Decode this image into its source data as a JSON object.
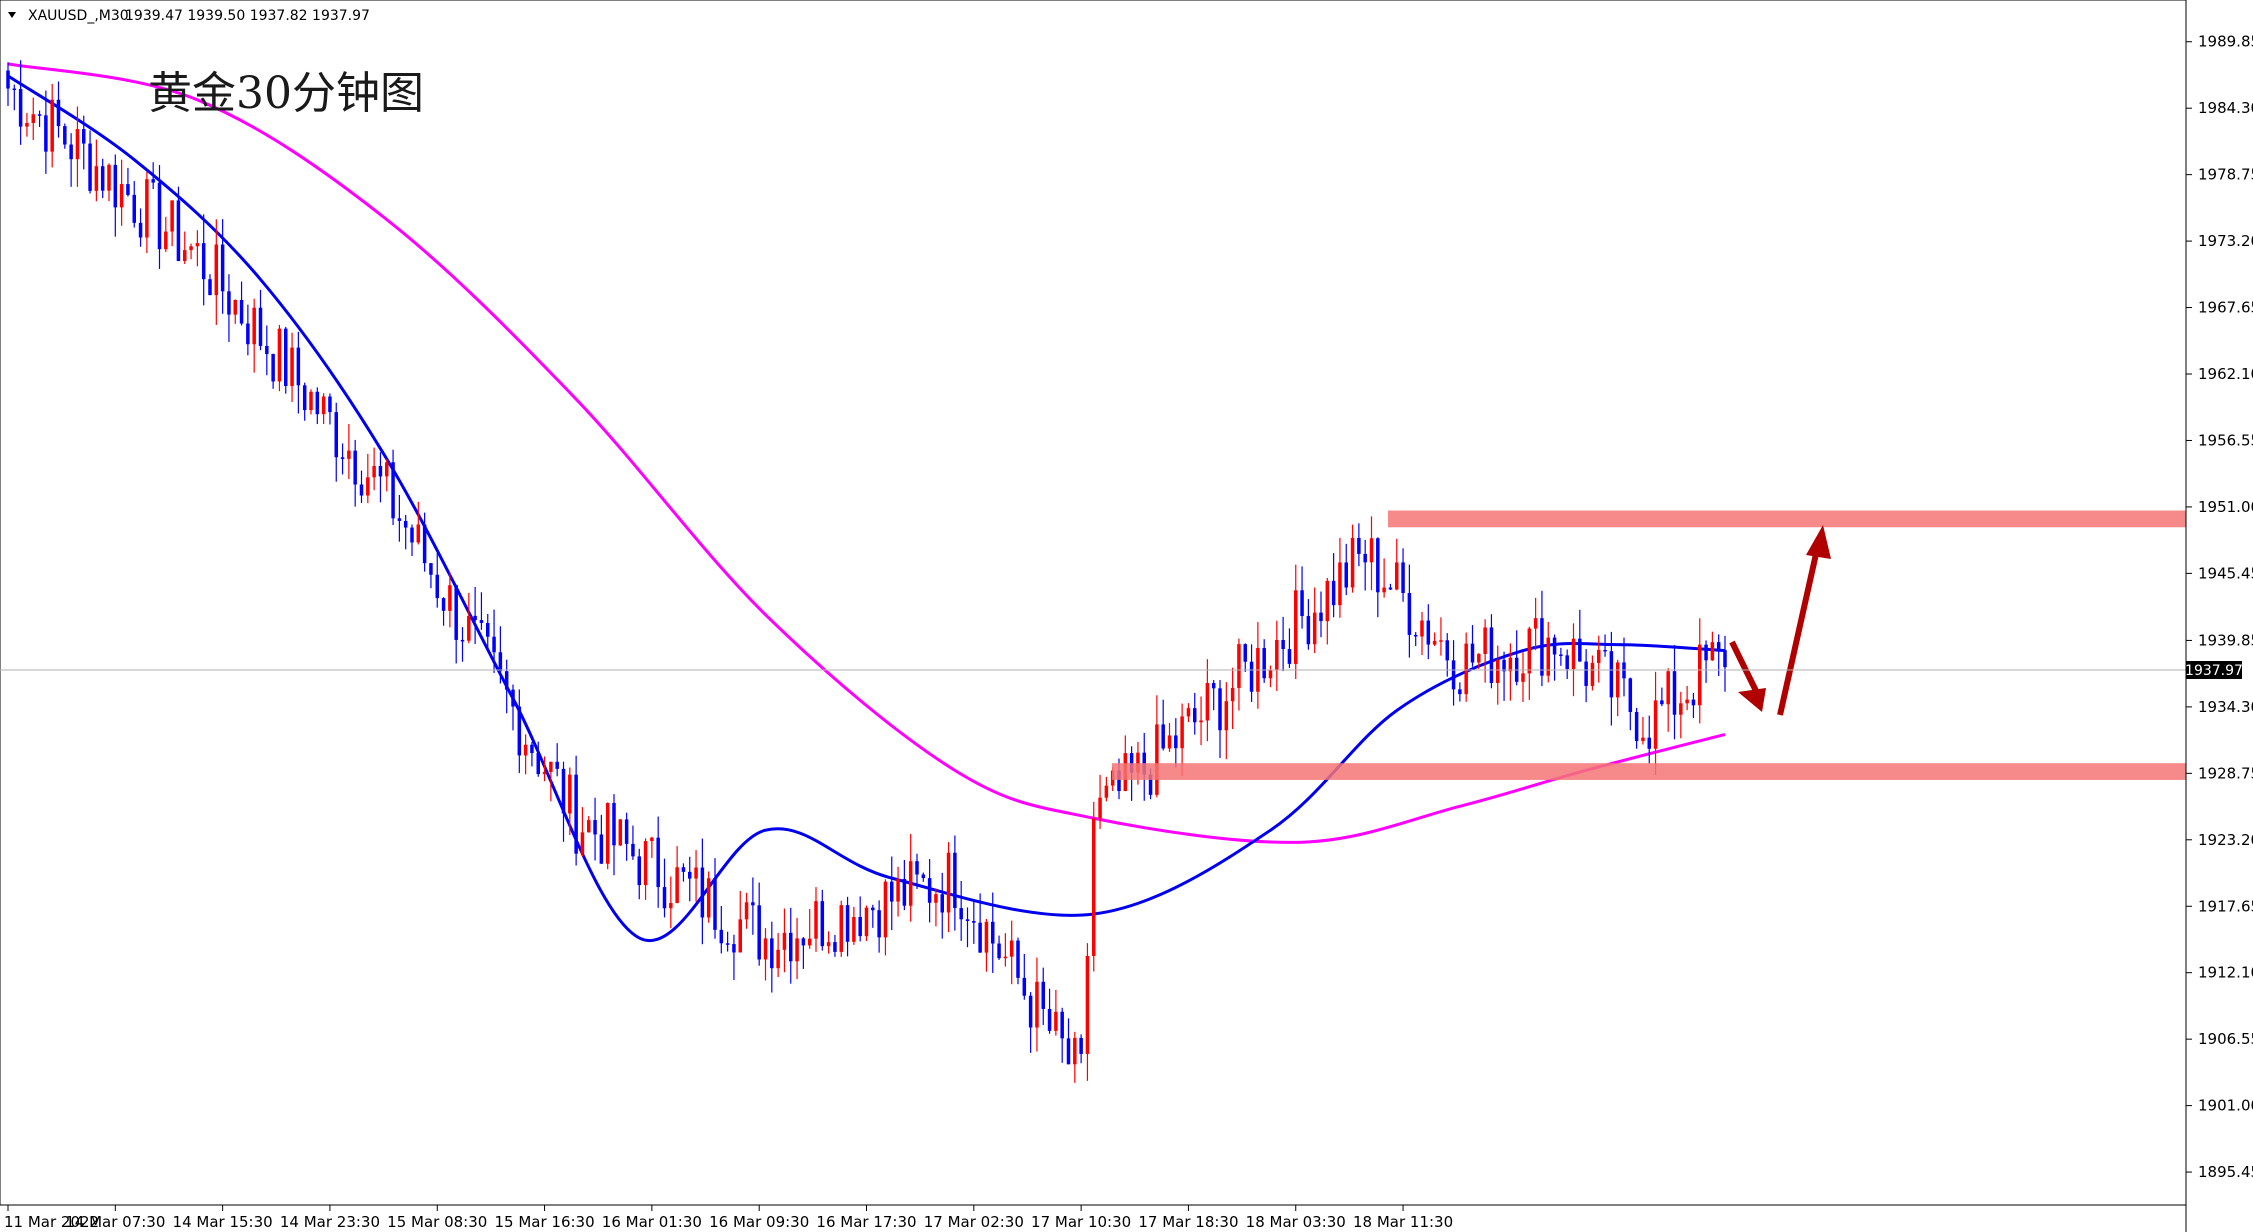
{
  "header": {
    "symbol": "XAUUSD_,M30",
    "ohlc": "1939.47 1939.50 1937.82 1937.97"
  },
  "chart_title": "黄金30分钟图",
  "colors": {
    "up": "#ff0000",
    "down": "#0000ff",
    "ma_fast": "#0000ee",
    "ma_slow": "#ff00ff",
    "zone": "#f47474",
    "arrow": "#b00000"
  },
  "current_price": "1937.97",
  "chart_data": {
    "type": "candlestick",
    "title": "黄金30分钟图",
    "ylim": [
      1892.7,
      1992.5
    ],
    "y_ticks": [
      "1989.85",
      "1984.30",
      "1978.75",
      "1973.20",
      "1967.65",
      "1962.10",
      "1956.55",
      "1951.00",
      "1945.45",
      "1939.85",
      "1934.30",
      "1928.75",
      "1923.20",
      "1917.65",
      "1912.10",
      "1906.55",
      "1901.00",
      "1895.45"
    ],
    "x_ticks": [
      "11 Mar 2022",
      "14 Mar 07:30",
      "14 Mar 15:30",
      "14 Mar 23:30",
      "15 Mar 08:30",
      "15 Mar 16:30",
      "16 Mar 01:30",
      "16 Mar 09:30",
      "16 Mar 17:30",
      "17 Mar 02:30",
      "17 Mar 10:30",
      "17 Mar 18:30",
      "18 Mar 03:30",
      "18 Mar 11:30"
    ],
    "key_points": [
      {
        "bar": 0,
        "close": 1986.0
      },
      {
        "bar": 30,
        "close": 1972.0
      },
      {
        "bar": 60,
        "close": 1952.0
      },
      {
        "bar": 90,
        "close": 1925.0
      },
      {
        "bar": 120,
        "close": 1915.0
      },
      {
        "bar": 150,
        "close": 1920.0
      },
      {
        "bar": 170,
        "close": 1903.0
      },
      {
        "bar": 172,
        "close": 1925.0
      },
      {
        "bar": 190,
        "close": 1934.0
      },
      {
        "bar": 215,
        "close": 1947.0
      },
      {
        "bar": 230,
        "close": 1938.0
      },
      {
        "bar": 245,
        "close": 1940.0
      },
      {
        "bar": 260,
        "close": 1933.0
      },
      {
        "bar": 270,
        "close": 1937.97
      }
    ],
    "ma_fast": [
      [
        0,
        1987
      ],
      [
        20,
        1980
      ],
      [
        40,
        1970
      ],
      [
        60,
        1955
      ],
      [
        80,
        1935
      ],
      [
        100,
        1915
      ],
      [
        120,
        1924
      ],
      [
        140,
        1920
      ],
      [
        172,
        1917
      ],
      [
        200,
        1924
      ],
      [
        220,
        1934
      ],
      [
        240,
        1939
      ],
      [
        255,
        1939.5
      ],
      [
        272,
        1939
      ]
    ],
    "ma_slow": [
      [
        0,
        1988
      ],
      [
        30,
        1985
      ],
      [
        60,
        1975
      ],
      [
        90,
        1960
      ],
      [
        120,
        1942
      ],
      [
        150,
        1929
      ],
      [
        172,
        1925
      ],
      [
        205,
        1923
      ],
      [
        230,
        1926
      ],
      [
        250,
        1929
      ],
      [
        272,
        1932
      ]
    ],
    "zones": [
      {
        "name": "resistance",
        "from": 1949.3,
        "to": 1950.7
      },
      {
        "name": "support",
        "from": 1928.2,
        "to": 1929.6
      }
    ]
  }
}
